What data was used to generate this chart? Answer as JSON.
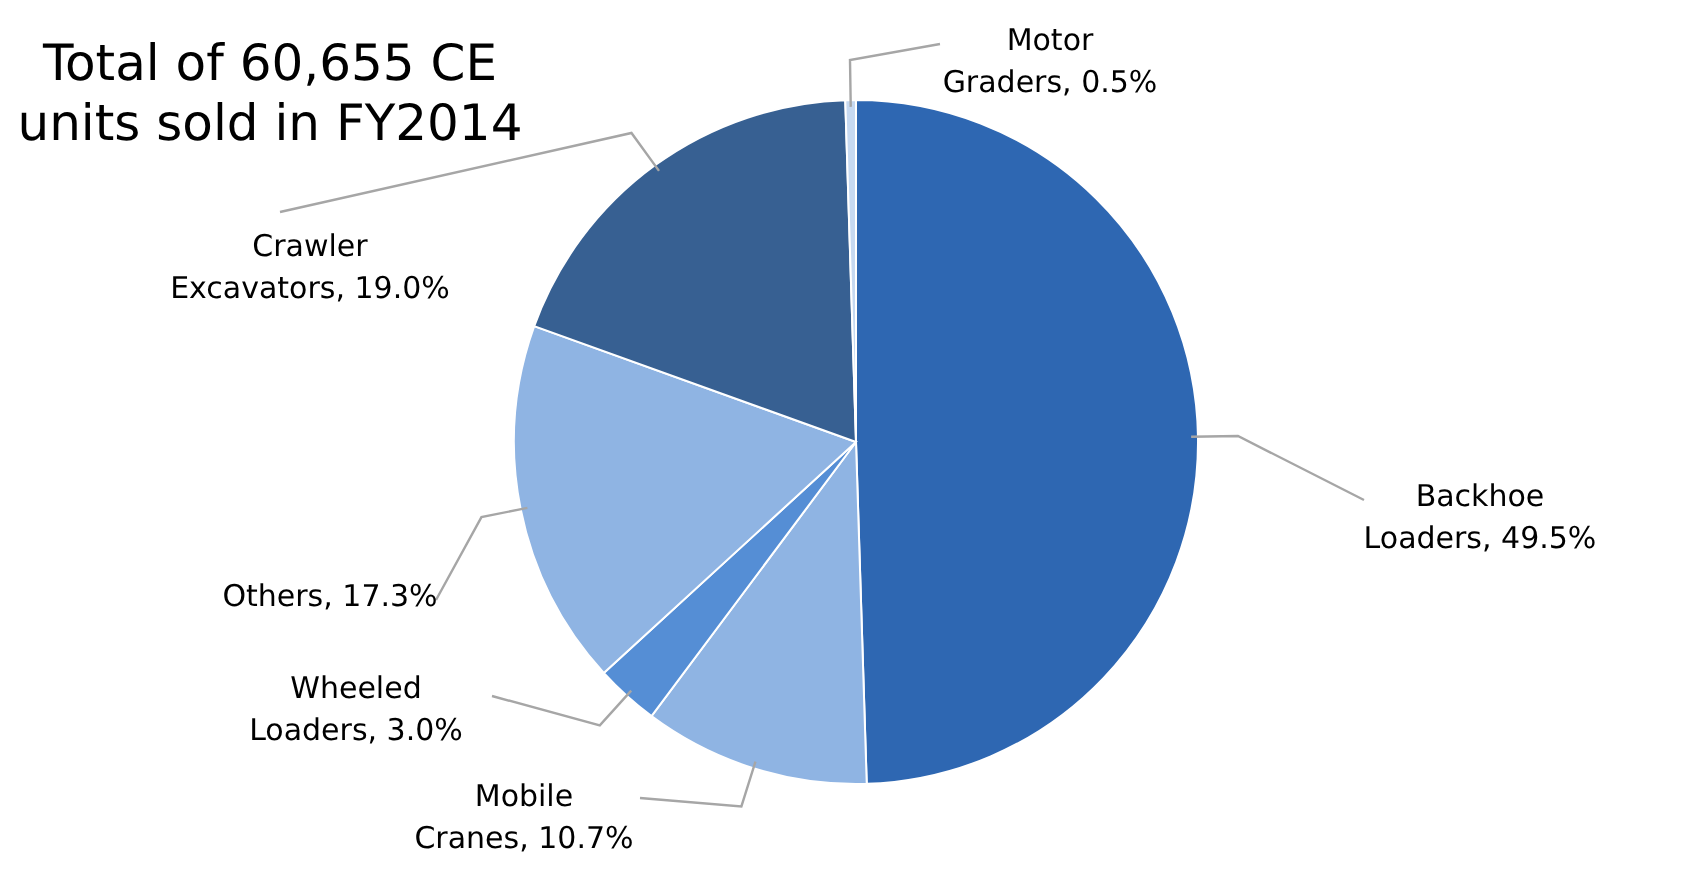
{
  "chart_data": {
    "type": "pie",
    "title": "Total of 60,655 CE units sold in FY2014",
    "categories": [
      "Backhoe Loaders",
      "Mobile Cranes",
      "Wheeled Loaders",
      "Others",
      "Crawler Excavators",
      "Motor Graders"
    ],
    "values": [
      49.5,
      10.7,
      3.0,
      17.3,
      19.0,
      0.5
    ],
    "value_labels": [
      "49.5%",
      "10.7%",
      "3.0%",
      "17.3%",
      "19.0%",
      "0.5%"
    ],
    "colors": [
      "#2e67b2",
      "#8fb4e3",
      "#558ed5",
      "#8fb4e3",
      "#376092",
      "#c6d9f1"
    ]
  }
}
